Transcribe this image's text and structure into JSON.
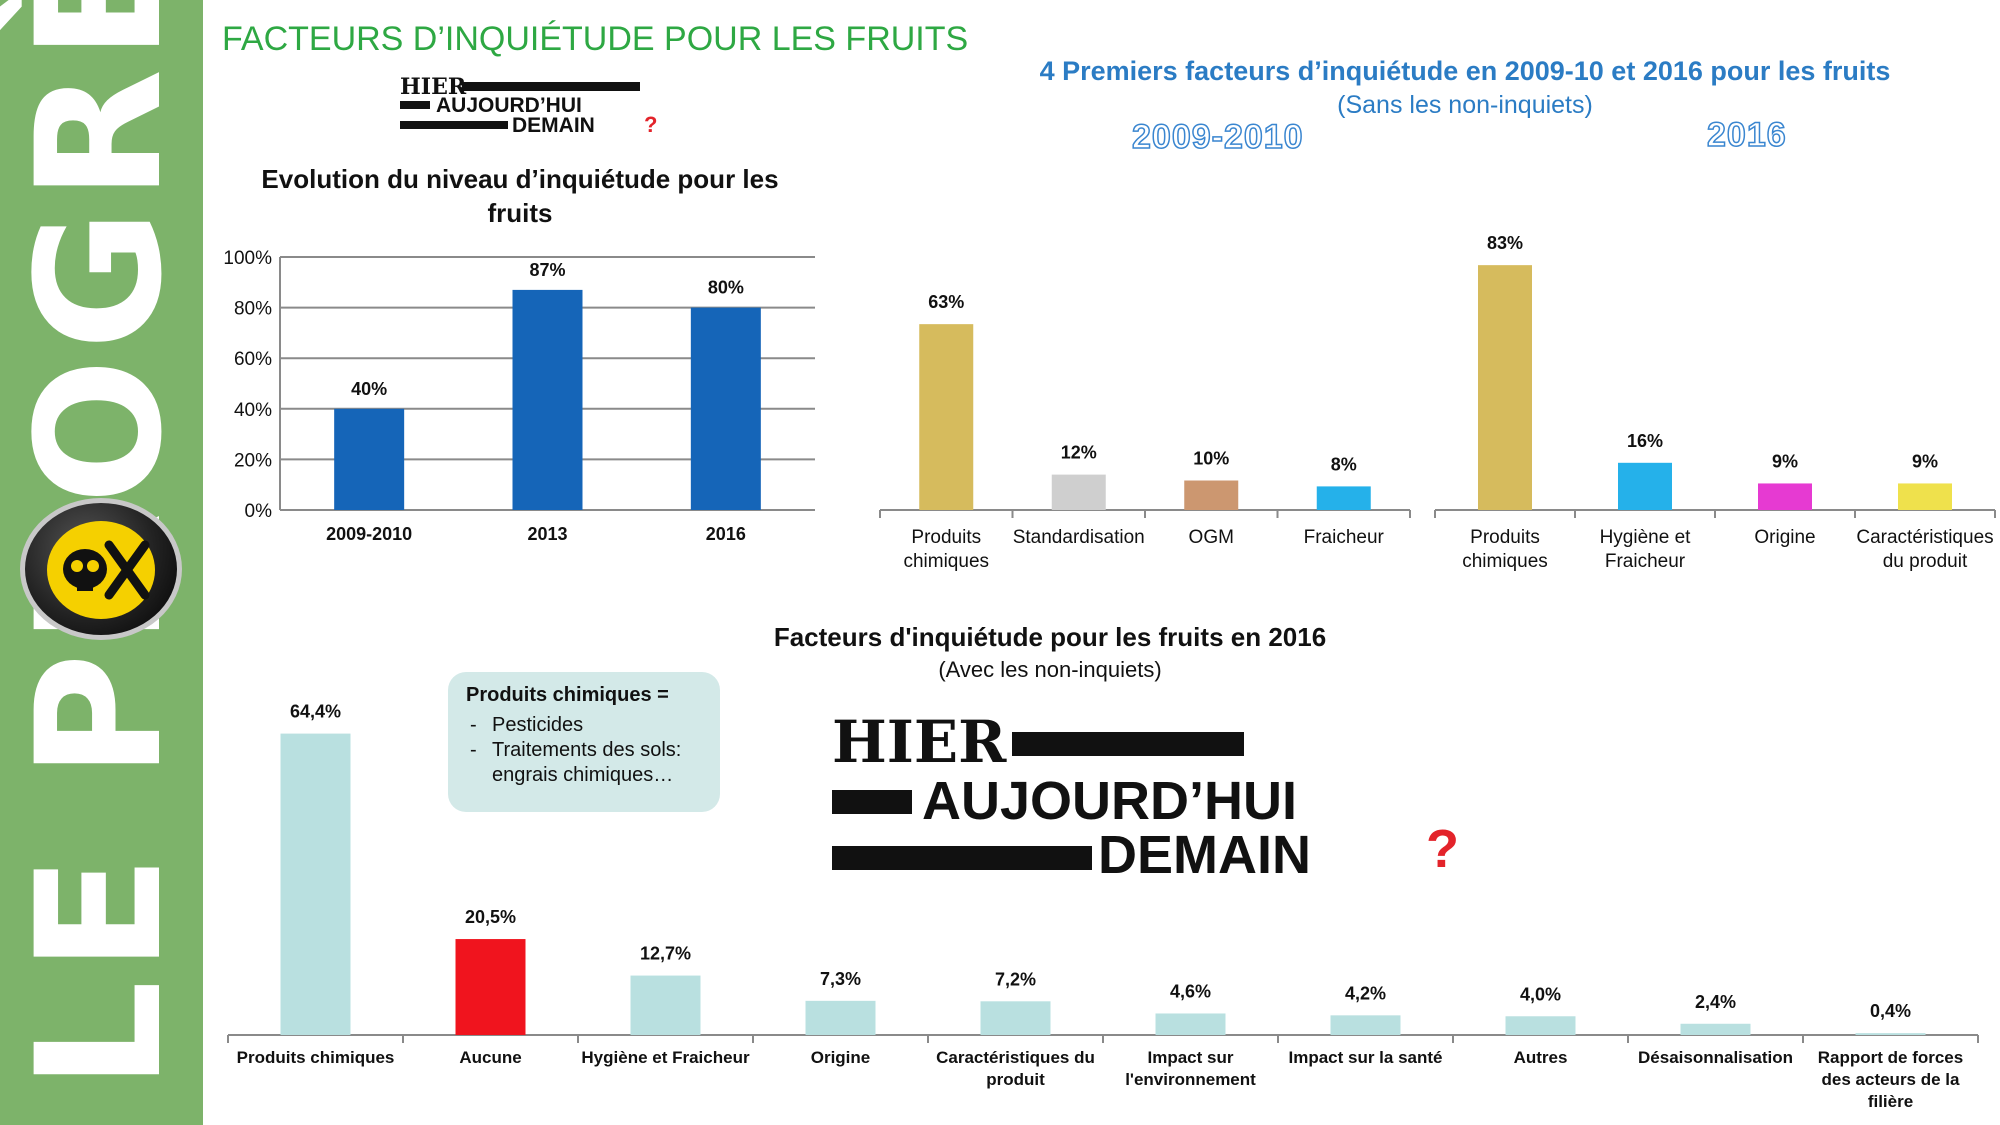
{
  "sidebar": {
    "label": "LE PROGRÈS"
  },
  "header": {
    "title": "FACTEURS D’INQUIÉTUDE POUR LES FRUITS"
  },
  "logo": {
    "line1": "HIER",
    "line2": "AUJOURD’HUI",
    "line3": "DEMAIN",
    "mark": "?"
  },
  "top_right": {
    "title": "4 Premiers facteurs d’inquiétude en 2009-10 et 2016 pour les fruits",
    "subtitle": "(Sans les non-inquiets)",
    "year_a": "2009-2010",
    "year_b": "2016"
  },
  "bottom": {
    "title": "Facteurs d'inquiétude pour les fruits en 2016",
    "subtitle": "(Avec les non-inquiets)"
  },
  "callout": {
    "title": "Produits chimiques =",
    "items": [
      "Pesticides",
      "Traitements des sols: engrais chimiques…"
    ]
  },
  "colors": {
    "sidebar_green": "#7db36a",
    "header_green": "#2ea843",
    "title_blue": "#2b7cc4",
    "bar_blue": "#1565b8",
    "bar_gold": "#d6bb5d",
    "bar_grey": "#cfcfcf",
    "bar_tan": "#cc9770",
    "bar_cyan": "#25b1ea",
    "bar_magenta": "#e63ad2",
    "bar_yellow": "#efe14c",
    "bar_pale": "#b9e0e0",
    "bar_red": "#f0141e"
  },
  "chart_data": [
    {
      "type": "bar",
      "title": "Evolution du niveau d’inquiétude pour les fruits",
      "categories": [
        "2009-2010",
        "2013",
        "2016"
      ],
      "values": [
        40,
        87,
        80
      ],
      "value_labels": [
        "40%",
        "87%",
        "80%"
      ],
      "ylim": [
        0,
        100
      ],
      "yticks": [
        "0%",
        "20%",
        "40%",
        "60%",
        "80%",
        "100%"
      ],
      "grid": true,
      "color": "#1565b8"
    },
    {
      "type": "bar",
      "title": "2009-2010",
      "categories": [
        "Produits chimiques",
        "Standardisation",
        "OGM",
        "Fraicheur"
      ],
      "values": [
        63,
        12,
        10,
        8
      ],
      "value_labels": [
        "63%",
        "12%",
        "10%",
        "8%"
      ],
      "colors": [
        "#d6bb5d",
        "#cfcfcf",
        "#cc9770",
        "#25b1ea"
      ]
    },
    {
      "type": "bar",
      "title": "2016",
      "categories": [
        "Produits chimiques",
        "Hygiène et Fraicheur",
        "Origine",
        "Caractéristiques du produit"
      ],
      "values": [
        83,
        16,
        9,
        9
      ],
      "value_labels": [
        "83%",
        "16%",
        "9%",
        "9%"
      ],
      "colors": [
        "#d6bb5d",
        "#25b1ea",
        "#e63ad2",
        "#efe14c"
      ]
    },
    {
      "type": "bar",
      "title": "Facteurs d'inquiétude pour les fruits en 2016",
      "categories": [
        "Produits chimiques",
        "Aucune",
        "Hygiène et Fraicheur",
        "Origine",
        "Caractéristiques du produit",
        "Impact sur l'environnement",
        "Impact sur la santé",
        "Autres",
        "Désaisonnalisation",
        "Rapport de forces des acteurs de la filière"
      ],
      "values": [
        64.4,
        20.5,
        12.7,
        7.3,
        7.2,
        4.6,
        4.2,
        4.0,
        2.4,
        0.4
      ],
      "value_labels": [
        "64,4%",
        "20,5%",
        "12,7%",
        "7,3%",
        "7,2%",
        "4,6%",
        "4,2%",
        "4,0%",
        "2,4%",
        "0,4%"
      ],
      "colors": [
        "#b9e0e0",
        "#f0141e",
        "#b9e0e0",
        "#b9e0e0",
        "#b9e0e0",
        "#b9e0e0",
        "#b9e0e0",
        "#b9e0e0",
        "#b9e0e0",
        "#b9e0e0"
      ]
    }
  ]
}
